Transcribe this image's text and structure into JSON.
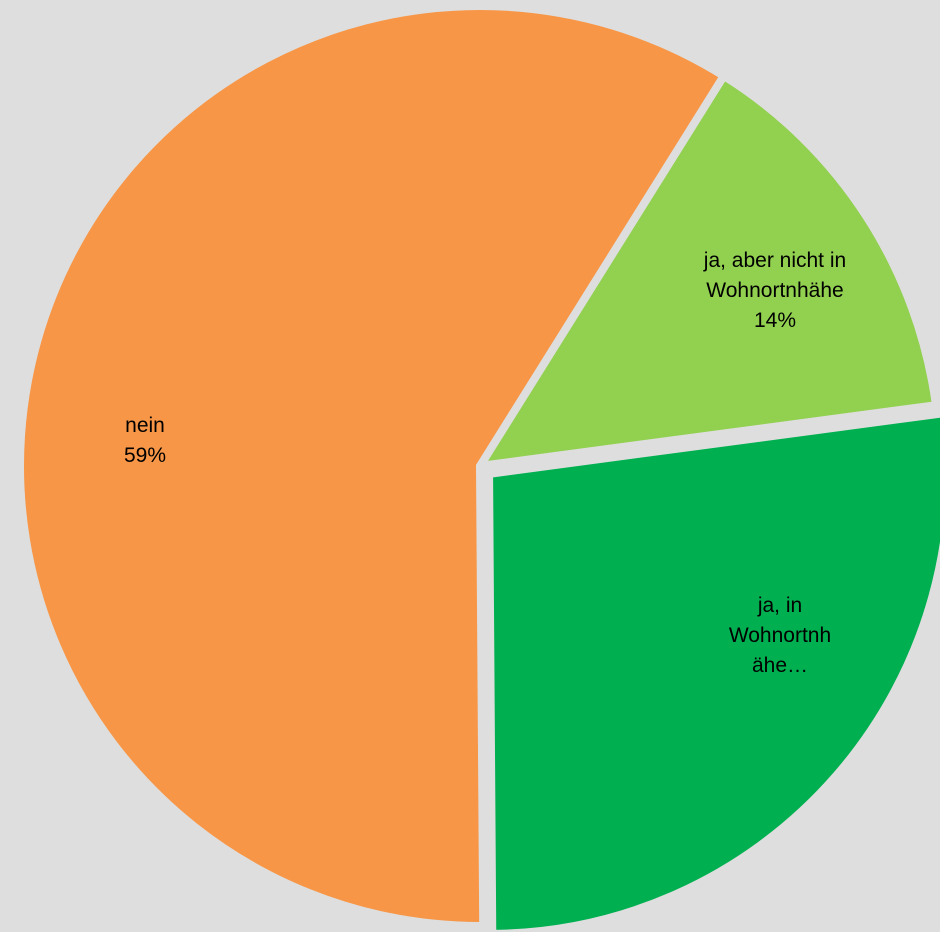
{
  "chart_data": {
    "type": "pie",
    "background_color": "#DEDEDE",
    "slices": [
      {
        "category": "ja, aber nicht in Wohnortnhähe",
        "value": 14,
        "value_label": "14%",
        "color": "#92D050",
        "label_lines": [
          "ja, aber nicht in",
          "Wohnortnhähe",
          "14%"
        ]
      },
      {
        "category": "ja, in Wohnortnhähe",
        "value": 27,
        "value_label": "",
        "color": "#00B050",
        "label_lines": [
          "ja, in",
          "Wohnortnh",
          "ähe…"
        ]
      },
      {
        "category": "nein",
        "value": 59,
        "value_label": "59%",
        "color": "#F79646",
        "label_lines": [
          "nein",
          "59%"
        ]
      }
    ],
    "start_angle_deg": 32,
    "direction": "clockwise",
    "exploded_category": "ja, in Wohnortnhähe"
  }
}
